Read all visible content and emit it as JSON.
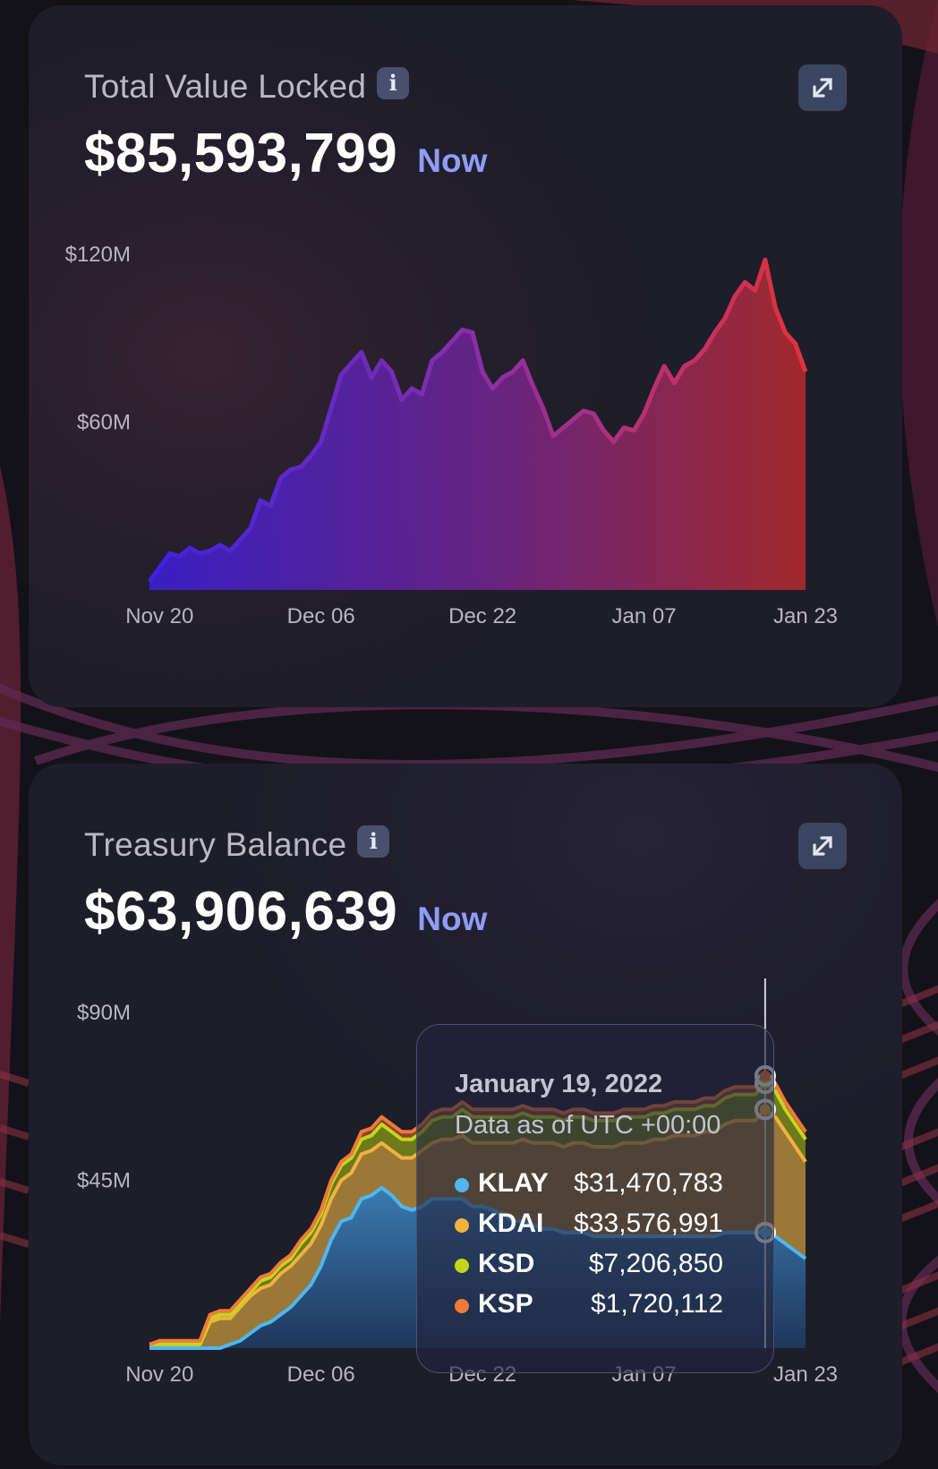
{
  "cards": [
    {
      "title": "Total Value Locked",
      "value": "$85,593,799",
      "badge": "Now",
      "icons": {
        "info": "info-icon",
        "expand": "expand-icon"
      }
    },
    {
      "title": "Treasury Balance",
      "value": "$63,906,639",
      "badge": "Now",
      "icons": {
        "info": "info-icon",
        "expand": "expand-icon"
      }
    }
  ],
  "tooltip": {
    "date": "January 19, 2022",
    "subtitle": "Data as of UTC +00:00",
    "rows": [
      {
        "name": "KLAY",
        "value": "$31,470,783",
        "color": "#4fb6f2"
      },
      {
        "name": "KDAI",
        "value": "$33,576,991",
        "color": "#f2b13f"
      },
      {
        "name": "KSD",
        "value": "$7,206,850",
        "color": "#c3d81a"
      },
      {
        "name": "KSP",
        "value": "$1,720,112",
        "color": "#f0793a"
      }
    ]
  },
  "colors": {
    "tvl_start": "#3a1fd2",
    "tvl_mid": "#7a2a93",
    "tvl_end": "#d8322b",
    "klay": "#4fb6f2",
    "kdai": "#f2b13f",
    "ksd": "#c3d81a",
    "ksp": "#f0793a",
    "now_badge": "#8f9cf9"
  },
  "chart_data": [
    {
      "type": "area",
      "ytick_labels": [
        "$120M",
        "$60M"
      ],
      "xtick_labels": [
        "Nov 20",
        "Dec 06",
        "Dec 22",
        "Jan 07",
        "Jan 23"
      ],
      "xlim": [
        "2021-11-19",
        "2022-01-23"
      ],
      "ylim": [
        0,
        120
      ],
      "unit": "$M",
      "grid": false,
      "series": [
        {
          "x": [
            "2021-11-19",
            "2021-11-20",
            "2021-11-21",
            "2021-11-22",
            "2021-11-23",
            "2021-11-24",
            "2021-11-25",
            "2021-11-26",
            "2021-11-27",
            "2021-11-28",
            "2021-11-29",
            "2021-11-30",
            "2021-12-01",
            "2021-12-02",
            "2021-12-03",
            "2021-12-04",
            "2021-12-05",
            "2021-12-06",
            "2021-12-07",
            "2021-12-08",
            "2021-12-09",
            "2021-12-10",
            "2021-12-11",
            "2021-12-12",
            "2021-12-13",
            "2021-12-14",
            "2021-12-15",
            "2021-12-16",
            "2021-12-17",
            "2021-12-18",
            "2021-12-19",
            "2021-12-20",
            "2021-12-21",
            "2021-12-22",
            "2021-12-23",
            "2021-12-24",
            "2021-12-25",
            "2021-12-26",
            "2021-12-27",
            "2021-12-28",
            "2021-12-29",
            "2021-12-30",
            "2021-12-31",
            "2022-01-01",
            "2022-01-02",
            "2022-01-03",
            "2022-01-04",
            "2022-01-05",
            "2022-01-06",
            "2022-01-07",
            "2022-01-08",
            "2022-01-09",
            "2022-01-10",
            "2022-01-11",
            "2022-01-12",
            "2022-01-13",
            "2022-01-14",
            "2022-01-15",
            "2022-01-16",
            "2022-01-17",
            "2022-01-18",
            "2022-01-19",
            "2022-01-20",
            "2022-01-21",
            "2022-01-22",
            "2022-01-23"
          ],
          "values": [
            3,
            8,
            13,
            12,
            15,
            13,
            14,
            16,
            14,
            18,
            22,
            32,
            30,
            40,
            43,
            44,
            48,
            53,
            65,
            77,
            81,
            85,
            76,
            82,
            78,
            68,
            72,
            70,
            82,
            85,
            89,
            93,
            92,
            78,
            72,
            76,
            78,
            82,
            73,
            65,
            55,
            58,
            61,
            64,
            63,
            57,
            53,
            58,
            57,
            63,
            72,
            80,
            74,
            80,
            82,
            86,
            92,
            97,
            105,
            110,
            107,
            118,
            101,
            92,
            88,
            78
          ]
        }
      ]
    },
    {
      "type": "area",
      "stacked": true,
      "ytick_labels": [
        "$90M",
        "$45M"
      ],
      "xtick_labels": [
        "Nov 20",
        "Dec 06",
        "Dec 22",
        "Jan 07",
        "Jan 23"
      ],
      "xlim": [
        "2021-11-19",
        "2022-01-23"
      ],
      "ylim": [
        0,
        90
      ],
      "unit": "$M",
      "grid": false,
      "legend": "tooltip",
      "hover_date": "2022-01-19",
      "series": [
        {
          "name": "KLAY",
          "values": [
            0,
            0,
            0,
            0,
            0,
            0,
            0,
            0,
            1,
            2,
            4,
            6,
            7,
            9,
            11,
            14,
            17,
            22,
            29,
            34,
            35,
            40,
            41,
            43,
            41,
            38,
            37,
            38,
            40,
            40,
            40,
            40,
            38,
            38,
            37,
            36,
            34,
            34,
            33,
            32,
            32,
            31,
            31,
            31,
            30,
            30,
            30,
            30,
            30,
            30,
            30,
            30,
            30,
            30,
            30,
            30,
            30,
            31,
            31,
            31,
            31,
            31,
            30,
            28,
            26,
            24
          ]
        },
        {
          "name": "KDAI",
          "values": [
            1,
            1,
            1,
            1,
            1,
            1,
            7,
            8,
            7,
            9,
            10,
            10,
            10,
            11,
            11,
            11,
            11,
            11,
            11,
            11,
            12,
            12,
            12,
            12,
            12,
            13,
            14,
            15,
            15,
            16,
            16,
            17,
            17,
            17,
            18,
            19,
            21,
            22,
            22,
            23,
            23,
            23,
            24,
            24,
            24,
            24,
            24,
            25,
            25,
            25,
            26,
            26,
            27,
            27,
            27,
            28,
            28,
            29,
            30,
            30,
            30,
            33,
            32,
            30,
            28,
            26
          ]
        },
        {
          "name": "KSD",
          "values": [
            0,
            0,
            0,
            0,
            0,
            0,
            1,
            1,
            1,
            1,
            1,
            2,
            2,
            2,
            2,
            3,
            3,
            3,
            4,
            4,
            4,
            4,
            4,
            5,
            5,
            5,
            5,
            5,
            6,
            6,
            6,
            7,
            7,
            7,
            7,
            7,
            7,
            7,
            7,
            7,
            7,
            7,
            7,
            7,
            7,
            7,
            7,
            7,
            7,
            7,
            7,
            7,
            7,
            7,
            7,
            7,
            7,
            7,
            7,
            7,
            7,
            7,
            7,
            6,
            6,
            6
          ]
        },
        {
          "name": "KSP",
          "values": [
            0,
            1,
            1,
            1,
            1,
            1,
            1,
            1,
            1,
            1,
            1,
            1,
            1,
            1,
            1,
            1,
            1,
            1,
            1,
            1,
            1,
            2,
            2,
            2,
            2,
            2,
            2,
            2,
            2,
            2,
            2,
            2,
            2,
            2,
            2,
            2,
            2,
            2,
            2,
            2,
            2,
            2,
            2,
            2,
            2,
            2,
            2,
            2,
            2,
            2,
            2,
            2,
            2,
            2,
            2,
            2,
            2,
            2,
            2,
            2,
            2,
            2,
            2,
            2,
            2,
            2
          ]
        }
      ]
    }
  ]
}
